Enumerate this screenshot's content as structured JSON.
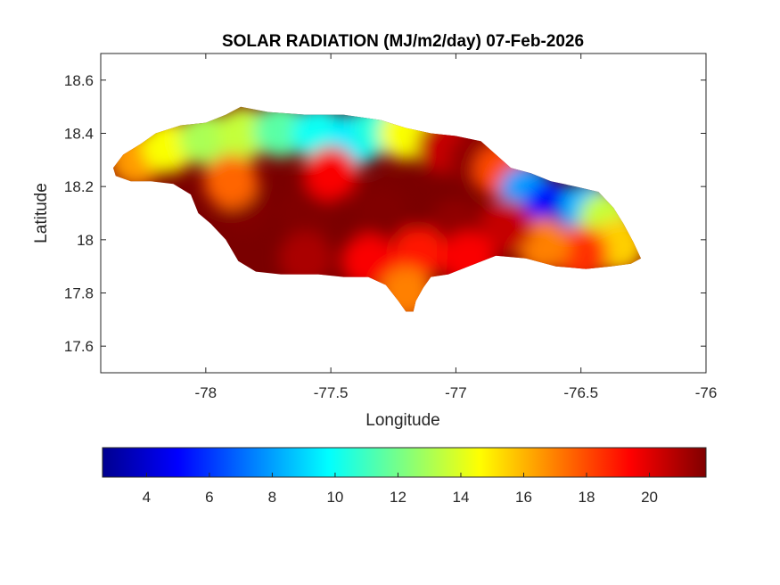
{
  "chart_data": {
    "type": "heatmap",
    "title": "SOLAR RADIATION (MJ/m2/day) 07-Feb-2026",
    "xlabel": "Longitude",
    "ylabel": "Latitude",
    "xlim": [
      -78.42,
      -76.0
    ],
    "ylim": [
      17.5,
      18.7
    ],
    "x_ticks": [
      -78,
      -77.5,
      -77,
      -76.5,
      -76
    ],
    "x_tick_labels": [
      "-78",
      "-77.5",
      "-77",
      "-76.5",
      "-76"
    ],
    "y_ticks": [
      17.6,
      17.8,
      18,
      18.2,
      18.4,
      18.6
    ],
    "y_tick_labels": [
      "17.6",
      "17.8",
      "18",
      "18.2",
      "18.4",
      "18.6"
    ],
    "colormap": "jet",
    "colorbar": {
      "location": "bottom",
      "range": [
        2.6,
        21.8
      ],
      "ticks": [
        4,
        6,
        8,
        10,
        12,
        14,
        16,
        18,
        20
      ],
      "tick_labels": [
        "4",
        "6",
        "8",
        "10",
        "12",
        "14",
        "16",
        "18",
        "20"
      ]
    },
    "region_outline": [
      [
        -78.37,
        18.27
      ],
      [
        -78.33,
        18.32
      ],
      [
        -78.26,
        18.36
      ],
      [
        -78.2,
        18.4
      ],
      [
        -78.1,
        18.43
      ],
      [
        -78.0,
        18.44
      ],
      [
        -77.92,
        18.47
      ],
      [
        -77.86,
        18.5
      ],
      [
        -77.75,
        18.48
      ],
      [
        -77.6,
        18.47
      ],
      [
        -77.45,
        18.47
      ],
      [
        -77.3,
        18.45
      ],
      [
        -77.2,
        18.42
      ],
      [
        -77.1,
        18.4
      ],
      [
        -77.0,
        18.39
      ],
      [
        -76.9,
        18.37
      ],
      [
        -76.84,
        18.32
      ],
      [
        -76.78,
        18.27
      ],
      [
        -76.7,
        18.25
      ],
      [
        -76.62,
        18.22
      ],
      [
        -76.52,
        18.2
      ],
      [
        -76.43,
        18.18
      ],
      [
        -76.37,
        18.12
      ],
      [
        -76.33,
        18.06
      ],
      [
        -76.29,
        17.99
      ],
      [
        -76.26,
        17.93
      ],
      [
        -76.3,
        17.91
      ],
      [
        -76.38,
        17.9
      ],
      [
        -76.48,
        17.89
      ],
      [
        -76.6,
        17.9
      ],
      [
        -76.72,
        17.93
      ],
      [
        -76.84,
        17.94
      ],
      [
        -76.95,
        17.9
      ],
      [
        -77.03,
        17.87
      ],
      [
        -77.1,
        17.86
      ],
      [
        -77.13,
        17.82
      ],
      [
        -77.16,
        17.77
      ],
      [
        -77.17,
        17.73
      ],
      [
        -77.2,
        17.73
      ],
      [
        -77.23,
        17.77
      ],
      [
        -77.28,
        17.83
      ],
      [
        -77.35,
        17.86
      ],
      [
        -77.45,
        17.86
      ],
      [
        -77.55,
        17.87
      ],
      [
        -77.7,
        17.87
      ],
      [
        -77.8,
        17.88
      ],
      [
        -77.87,
        17.92
      ],
      [
        -77.92,
        18.0
      ],
      [
        -77.98,
        18.06
      ],
      [
        -78.03,
        18.1
      ],
      [
        -78.06,
        18.17
      ],
      [
        -78.13,
        18.21
      ],
      [
        -78.22,
        18.22
      ],
      [
        -78.3,
        18.22
      ],
      [
        -78.36,
        18.24
      ]
    ],
    "field_samples": [
      {
        "lon": -78.28,
        "lat": 18.3,
        "value": 16.5
      },
      {
        "lon": -78.15,
        "lat": 18.35,
        "value": 14.5
      },
      {
        "lon": -78.0,
        "lat": 18.38,
        "value": 13.0
      },
      {
        "lon": -77.85,
        "lat": 18.4,
        "value": 13.5
      },
      {
        "lon": -77.7,
        "lat": 18.41,
        "value": 11.5
      },
      {
        "lon": -77.55,
        "lat": 18.4,
        "value": 10.0
      },
      {
        "lon": -77.4,
        "lat": 18.38,
        "value": 9.5
      },
      {
        "lon": -77.3,
        "lat": 18.42,
        "value": 10.5
      },
      {
        "lon": -77.2,
        "lat": 18.4,
        "value": 14.5
      },
      {
        "lon": -77.05,
        "lat": 18.35,
        "value": 20.5
      },
      {
        "lon": -76.92,
        "lat": 18.3,
        "value": 21.5
      },
      {
        "lon": -76.82,
        "lat": 18.26,
        "value": 18.0
      },
      {
        "lon": -76.72,
        "lat": 18.18,
        "value": 8.0
      },
      {
        "lon": -76.62,
        "lat": 18.12,
        "value": 5.0
      },
      {
        "lon": -76.55,
        "lat": 18.05,
        "value": 4.0
      },
      {
        "lon": -76.47,
        "lat": 18.12,
        "value": 8.5
      },
      {
        "lon": -76.4,
        "lat": 18.08,
        "value": 13.5
      },
      {
        "lon": -76.35,
        "lat": 17.98,
        "value": 15.5
      },
      {
        "lon": -76.5,
        "lat": 17.95,
        "value": 18.5
      },
      {
        "lon": -76.65,
        "lat": 17.98,
        "value": 17.0
      },
      {
        "lon": -76.8,
        "lat": 18.05,
        "value": 20.5
      },
      {
        "lon": -77.0,
        "lat": 18.05,
        "value": 21.5
      },
      {
        "lon": -77.3,
        "lat": 18.1,
        "value": 21.8
      },
      {
        "lon": -77.6,
        "lat": 18.1,
        "value": 21.8
      },
      {
        "lon": -77.85,
        "lat": 18.12,
        "value": 21.8
      },
      {
        "lon": -77.9,
        "lat": 18.22,
        "value": 17.5
      },
      {
        "lon": -77.5,
        "lat": 18.25,
        "value": 19.5
      },
      {
        "lon": -77.6,
        "lat": 17.93,
        "value": 21.0
      },
      {
        "lon": -77.35,
        "lat": 17.92,
        "value": 19.5
      },
      {
        "lon": -77.15,
        "lat": 17.95,
        "value": 19.0
      },
      {
        "lon": -77.2,
        "lat": 17.8,
        "value": 17.0
      },
      {
        "lon": -76.95,
        "lat": 17.93,
        "value": 19.5
      }
    ]
  }
}
